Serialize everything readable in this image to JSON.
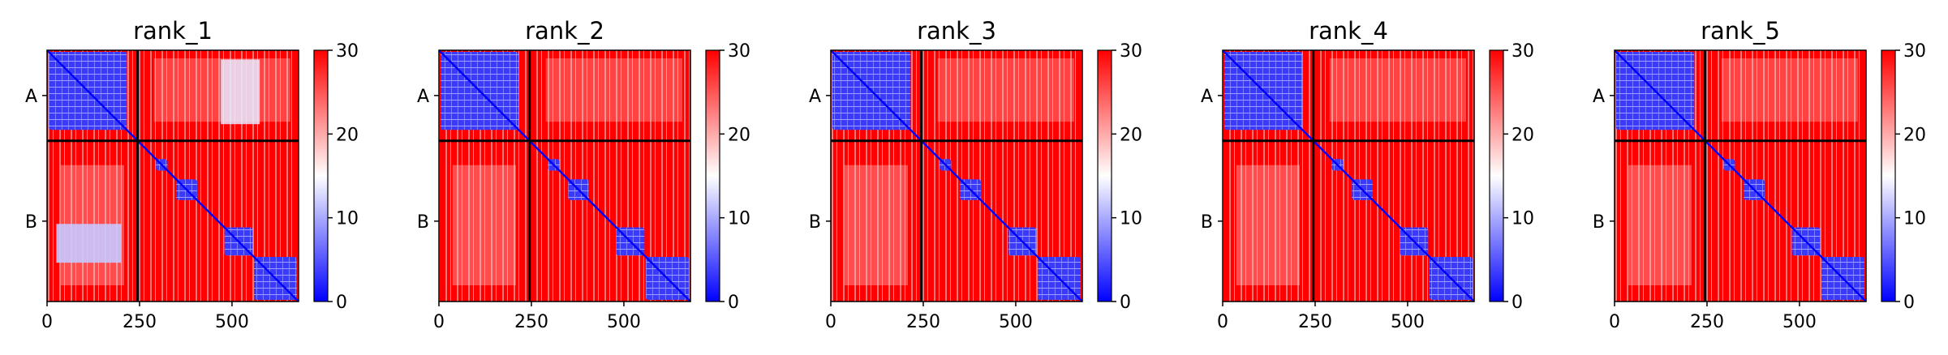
{
  "chart_data": [
    {
      "type": "heatmap",
      "title": "rank_1",
      "chain_labels": [
        "A",
        "B"
      ],
      "x_ticks": [
        0,
        250,
        500
      ],
      "x_range": [
        0,
        680
      ],
      "chain_boundary": 245,
      "colorbar": {
        "range": [
          0,
          30
        ],
        "ticks": [
          0,
          10,
          20,
          30
        ],
        "colors": {
          "low": "#0000ff",
          "mid": "#ffffff",
          "high": "#ff0000"
        }
      },
      "low_error_blocks": [
        [
          0,
          220
        ],
        [
          290,
          330
        ],
        [
          345,
          410
        ],
        [
          475,
          560
        ],
        [
          555,
          680
        ]
      ],
      "low_error_offdiag_blocks": [
        [
          [
            470,
            575
          ],
          [
            25,
            200
          ]
        ]
      ]
    },
    {
      "type": "heatmap",
      "title": "rank_2",
      "chain_labels": [
        "A",
        "B"
      ],
      "x_ticks": [
        0,
        250,
        500
      ],
      "x_range": [
        0,
        680
      ],
      "chain_boundary": 245,
      "colorbar": {
        "range": [
          0,
          30
        ],
        "ticks": [
          0,
          10,
          20,
          30
        ],
        "colors": {
          "low": "#0000ff",
          "mid": "#ffffff",
          "high": "#ff0000"
        }
      },
      "low_error_blocks": [
        [
          0,
          220
        ],
        [
          290,
          330
        ],
        [
          345,
          410
        ],
        [
          475,
          560
        ],
        [
          555,
          680
        ]
      ],
      "low_error_offdiag_blocks": []
    },
    {
      "type": "heatmap",
      "title": "rank_3",
      "chain_labels": [
        "A",
        "B"
      ],
      "x_ticks": [
        0,
        250,
        500
      ],
      "x_range": [
        0,
        680
      ],
      "chain_boundary": 245,
      "colorbar": {
        "range": [
          0,
          30
        ],
        "ticks": [
          0,
          10,
          20,
          30
        ],
        "colors": {
          "low": "#0000ff",
          "mid": "#ffffff",
          "high": "#ff0000"
        }
      },
      "low_error_blocks": [
        [
          0,
          220
        ],
        [
          290,
          330
        ],
        [
          345,
          410
        ],
        [
          475,
          560
        ],
        [
          555,
          680
        ]
      ],
      "low_error_offdiag_blocks": []
    },
    {
      "type": "heatmap",
      "title": "rank_4",
      "chain_labels": [
        "A",
        "B"
      ],
      "x_ticks": [
        0,
        250,
        500
      ],
      "x_range": [
        0,
        680
      ],
      "chain_boundary": 245,
      "colorbar": {
        "range": [
          0,
          30
        ],
        "ticks": [
          0,
          10,
          20,
          30
        ],
        "colors": {
          "low": "#0000ff",
          "mid": "#ffffff",
          "high": "#ff0000"
        }
      },
      "low_error_blocks": [
        [
          0,
          220
        ],
        [
          290,
          330
        ],
        [
          345,
          410
        ],
        [
          475,
          560
        ],
        [
          555,
          680
        ]
      ],
      "low_error_offdiag_blocks": []
    },
    {
      "type": "heatmap",
      "title": "rank_5",
      "chain_labels": [
        "A",
        "B"
      ],
      "x_ticks": [
        0,
        250,
        500
      ],
      "x_range": [
        0,
        680
      ],
      "chain_boundary": 245,
      "colorbar": {
        "range": [
          0,
          30
        ],
        "ticks": [
          0,
          10,
          20,
          30
        ],
        "colors": {
          "low": "#0000ff",
          "mid": "#ffffff",
          "high": "#ff0000"
        }
      },
      "low_error_blocks": [
        [
          0,
          220
        ],
        [
          290,
          330
        ],
        [
          345,
          410
        ],
        [
          475,
          560
        ],
        [
          555,
          680
        ]
      ],
      "low_error_offdiag_blocks": []
    }
  ]
}
